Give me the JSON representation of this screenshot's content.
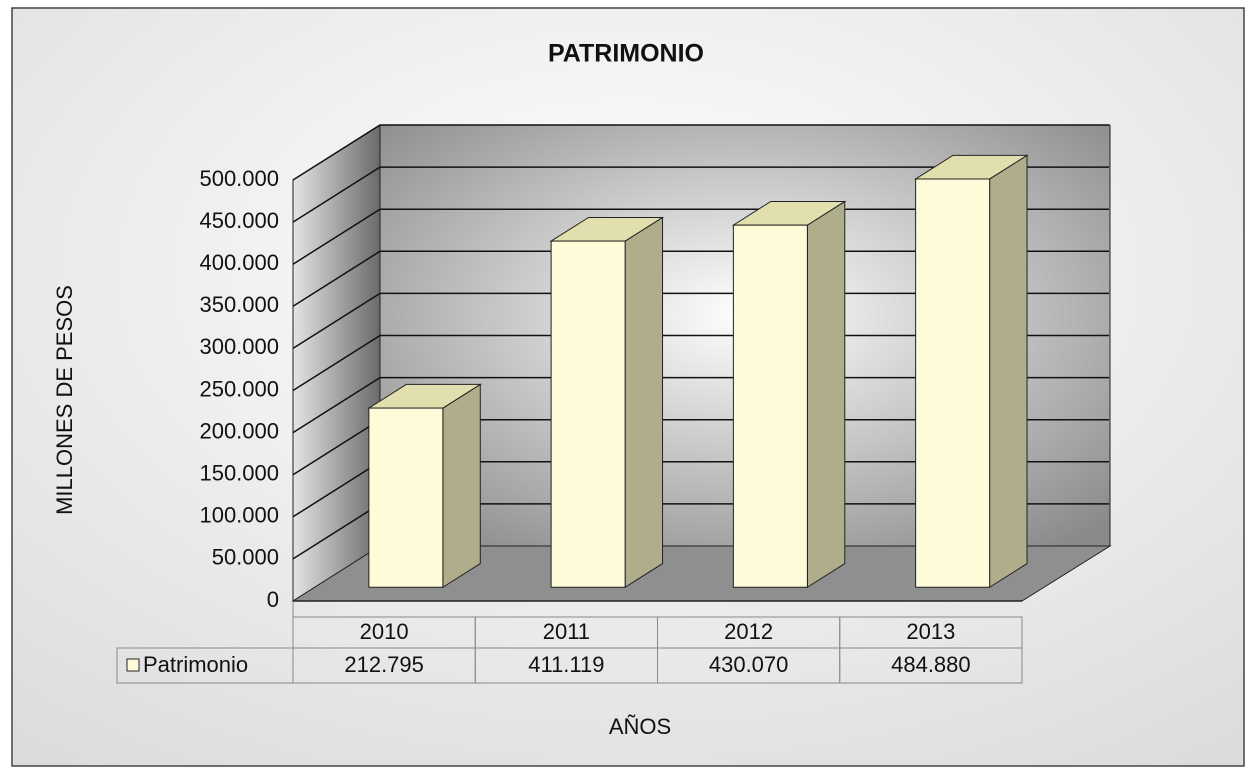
{
  "chart_data": {
    "type": "bar3d",
    "title": "PATRIMONIO",
    "y_label": "MILLONES DE PESOS",
    "x_label": "AÑOS",
    "categories": [
      "2010",
      "2011",
      "2012",
      "2013"
    ],
    "series": [
      {
        "name": "Patrimonio",
        "color": "#fdfbd8",
        "values": [
          212795,
          411119,
          430070,
          484880
        ],
        "value_labels": [
          "212.795",
          "411.119",
          "430.070",
          "484.880"
        ]
      }
    ],
    "ylim": [
      0,
      500000
    ],
    "yticks": [
      0,
      {
        "value": 50000,
        "label": "50.000"
      },
      {
        "value": 100000,
        "label": "100.000"
      },
      {
        "value": 150000,
        "label": "150.000"
      },
      {
        "value": 200000,
        "label": "200.000"
      },
      {
        "value": 250000,
        "label": "250.000"
      },
      {
        "value": 300000,
        "label": "300.000"
      },
      {
        "value": 350000,
        "label": "350.000"
      },
      {
        "value": 400000,
        "label": "400.000"
      },
      {
        "value": 450000,
        "label": "450.000"
      },
      {
        "value": 500000,
        "label": "500.000"
      }
    ],
    "grid": true
  }
}
